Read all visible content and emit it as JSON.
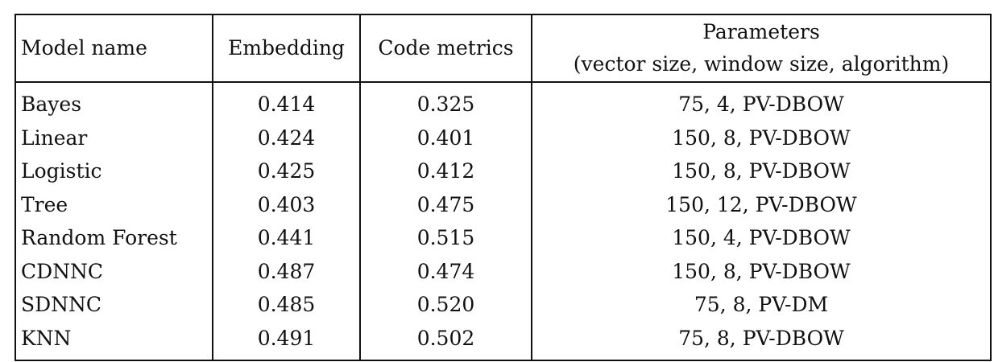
{
  "table": {
    "headers": {
      "model": "Model name",
      "embedding": "Embedding",
      "code_metrics": "Code metrics",
      "parameters_line1": "Parameters",
      "parameters_line2": "(vector size, window size, algorithm)"
    },
    "rows": [
      {
        "model": "Bayes",
        "embedding": "0.414",
        "code_metrics": "0.325",
        "parameters": "75, 4, PV-DBOW",
        "best": "embedding"
      },
      {
        "model": "Linear",
        "embedding": "0.424",
        "code_metrics": "0.401",
        "parameters": "150, 8, PV-DBOW",
        "best": "embedding"
      },
      {
        "model": "Logistic",
        "embedding": "0.425",
        "code_metrics": "0.412",
        "parameters": "150, 8, PV-DBOW",
        "best": "embedding"
      },
      {
        "model": "Tree",
        "embedding": "0.403",
        "code_metrics": "0.475",
        "parameters": "150, 12, PV-DBOW",
        "best": "code_metrics"
      },
      {
        "model": "Random Forest",
        "embedding": "0.441",
        "code_metrics": "0.515",
        "parameters": "150, 4, PV-DBOW",
        "best": "code_metrics"
      },
      {
        "model": "CDNNC",
        "embedding": "0.487",
        "code_metrics": "0.474",
        "parameters": "150, 8, PV-DBOW",
        "best": "embedding"
      },
      {
        "model": "SDNNC",
        "embedding": "0.485",
        "code_metrics": "0.520",
        "parameters": "75, 8, PV-DM",
        "best": "code_metrics"
      },
      {
        "model": "KNN",
        "embedding": "0.491",
        "code_metrics": "0.502",
        "parameters": "75, 8, PV-DBOW",
        "best": "code_metrics"
      }
    ]
  }
}
